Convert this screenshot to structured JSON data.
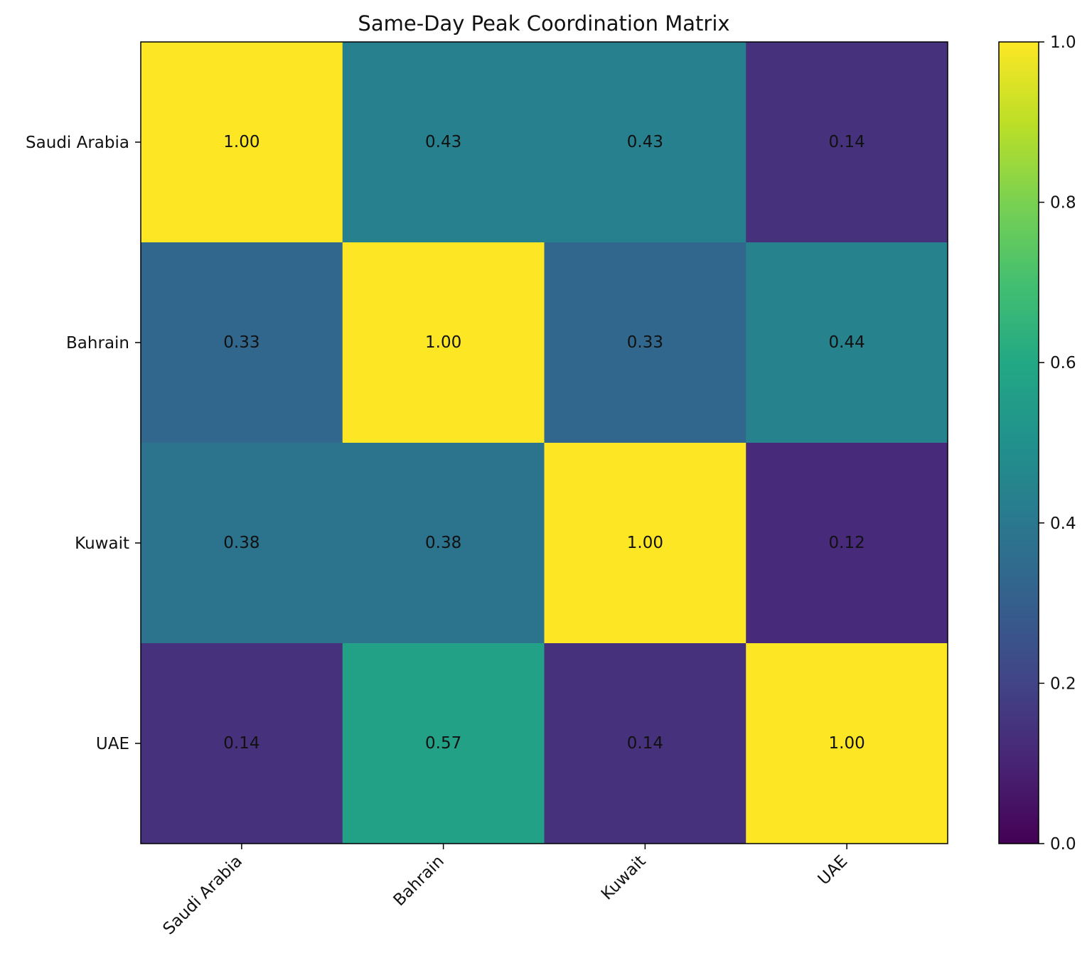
{
  "chart_data": {
    "type": "heatmap",
    "title": "Same-Day Peak Coordination Matrix",
    "x_categories": [
      "Saudi Arabia",
      "Bahrain",
      "Kuwait",
      "UAE"
    ],
    "y_categories": [
      "Saudi Arabia",
      "Bahrain",
      "Kuwait",
      "UAE"
    ],
    "values": [
      [
        1.0,
        0.43,
        0.43,
        0.14
      ],
      [
        0.33,
        1.0,
        0.33,
        0.44
      ],
      [
        0.38,
        0.38,
        1.0,
        0.12
      ],
      [
        0.14,
        0.57,
        0.14,
        1.0
      ]
    ],
    "colormap": "viridis",
    "colorbar": {
      "range": [
        0.0,
        1.0
      ],
      "ticks": [
        "0.0",
        "0.2",
        "0.4",
        "0.6",
        "0.8",
        "1.0"
      ]
    },
    "xlabel": "",
    "ylabel": "",
    "grid": false
  }
}
